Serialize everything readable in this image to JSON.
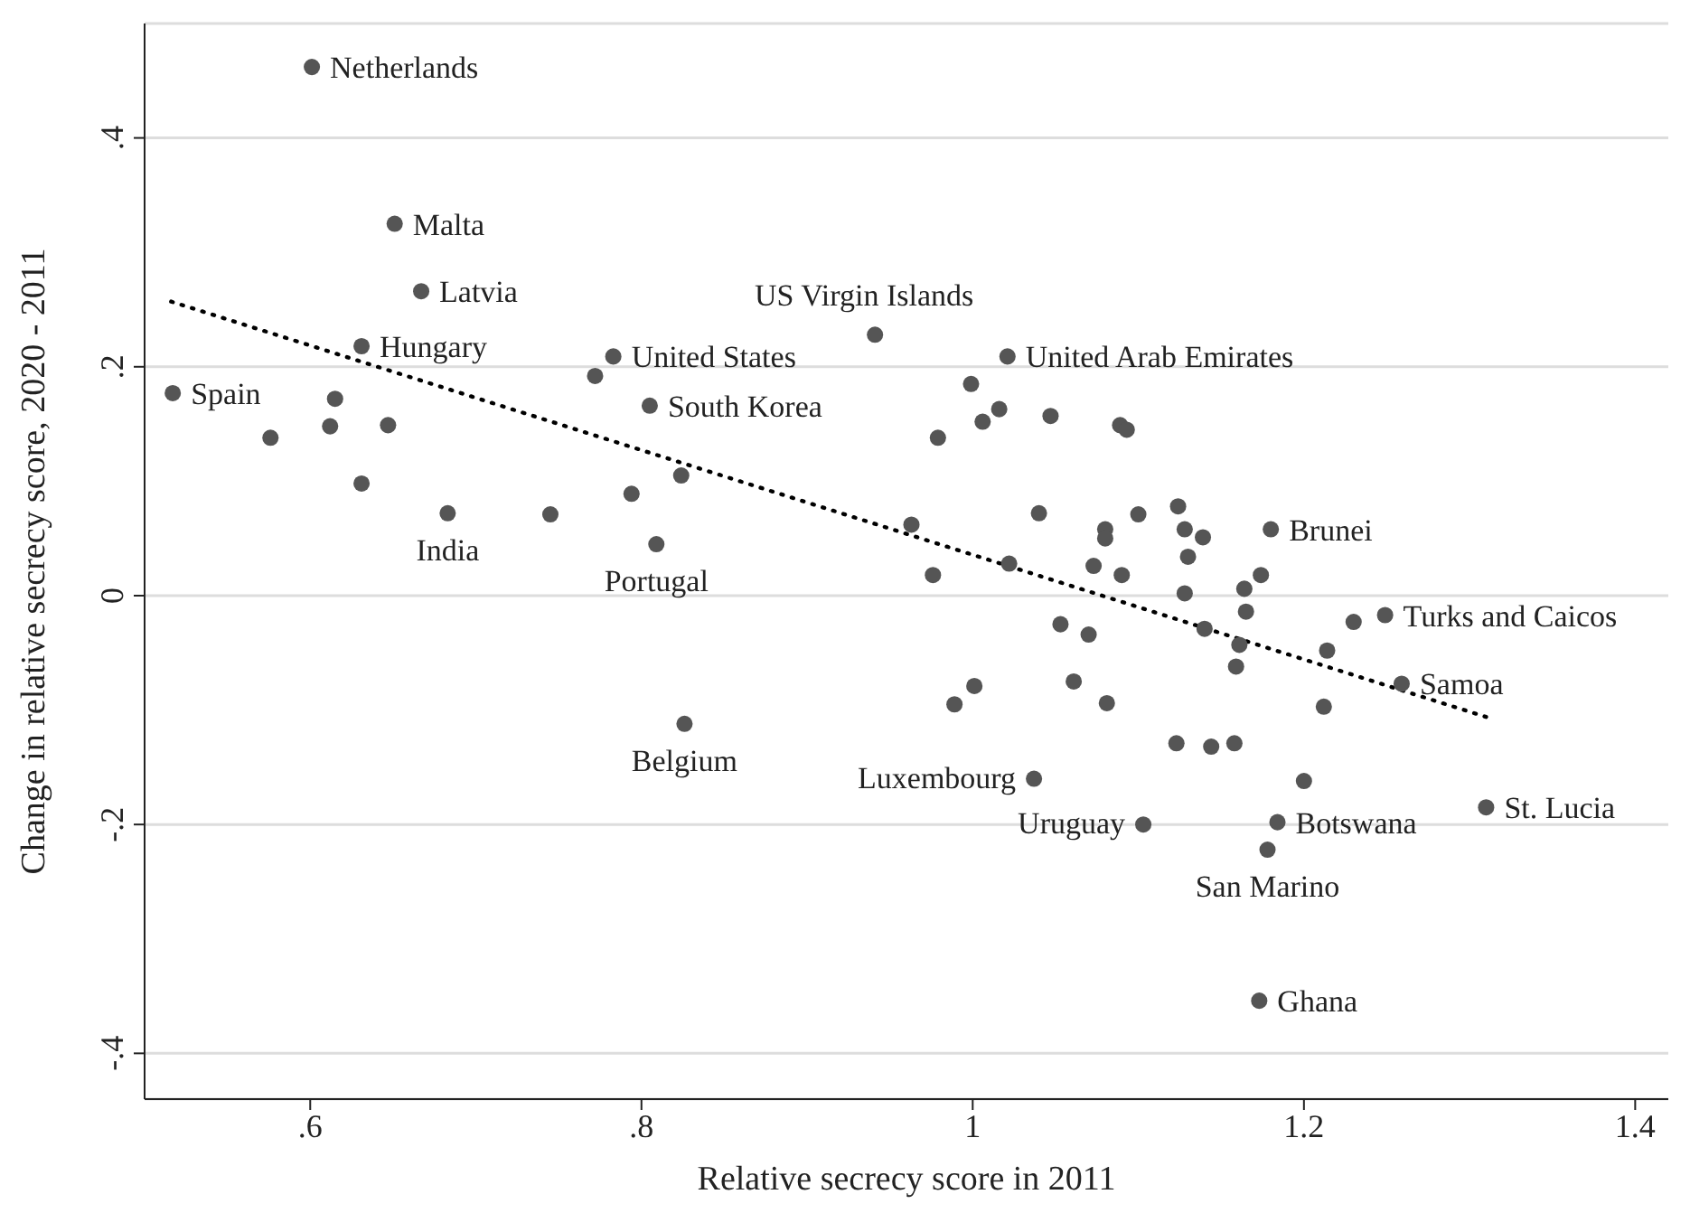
{
  "chart_data": {
    "type": "scatter",
    "xlabel": "Relative secrecy score in 2011",
    "ylabel": "Change in relative secrecy score, 2020 - 2011",
    "xlim": [
      0.5,
      1.42
    ],
    "ylim": [
      -0.44,
      0.5
    ],
    "xticks": [
      {
        "value": 0.6,
        "label": ".6"
      },
      {
        "value": 0.8,
        "label": ".8"
      },
      1,
      1.2,
      1.4
    ],
    "yticks": [
      {
        "value": -0.4,
        "label": "-.4"
      },
      {
        "value": -0.2,
        "label": "-.2"
      },
      0,
      {
        "value": 0.2,
        "label": ".2"
      },
      {
        "value": 0.4,
        "label": ".4"
      }
    ],
    "grid": "y",
    "legend": false,
    "marker": "circle",
    "series": [
      {
        "color": "#555555",
        "x": [
          0.601,
          0.651,
          0.667,
          0.631,
          0.517,
          0.783,
          0.805,
          0.941,
          1.021,
          0.683,
          0.809,
          0.826,
          1.18,
          1.249,
          1.259,
          1.31,
          1.037,
          1.103,
          1.184,
          1.178,
          1.173,
          0.615,
          0.576,
          0.612,
          0.647,
          0.631,
          0.772,
          0.745,
          0.794,
          0.824,
          0.999,
          1.016,
          1.006,
          0.979,
          1.047,
          1.089,
          1.093,
          0.963,
          1.04,
          1.1,
          1.08,
          1.08,
          1.124,
          1.128,
          1.139,
          1.13,
          1.022,
          0.976,
          1.073,
          1.09,
          1.174,
          1.164,
          1.128,
          1.165,
          1.053,
          1.07,
          1.14,
          1.161,
          1.159,
          1.23,
          1.214,
          1.212,
          1.001,
          0.989,
          1.061,
          1.081,
          1.123,
          1.144,
          1.158,
          1.2
        ],
        "values": [
          0.462,
          0.325,
          0.266,
          0.218,
          0.177,
          0.209,
          0.166,
          0.228,
          0.209,
          0.072,
          0.045,
          -0.112,
          0.058,
          -0.017,
          -0.077,
          -0.185,
          -0.16,
          -0.2,
          -0.198,
          -0.222,
          -0.354,
          0.172,
          0.138,
          0.148,
          0.149,
          0.098,
          0.192,
          0.071,
          0.089,
          0.105,
          0.185,
          0.163,
          0.152,
          0.138,
          0.157,
          0.149,
          0.145,
          0.062,
          0.072,
          0.071,
          0.058,
          0.05,
          0.078,
          0.058,
          0.051,
          0.034,
          0.028,
          0.018,
          0.026,
          0.018,
          0.018,
          0.006,
          0.002,
          -0.014,
          -0.025,
          -0.034,
          -0.029,
          -0.043,
          -0.062,
          -0.023,
          -0.048,
          -0.097,
          -0.079,
          -0.095,
          -0.075,
          -0.094,
          -0.129,
          -0.132,
          -0.129,
          -0.162
        ]
      },
      {
        "type": "line",
        "color": "#000000",
        "line_style": "dotted",
        "marker": "none",
        "x": [
          0.516,
          1.31
        ],
        "values": [
          0.257,
          -0.106
        ]
      }
    ],
    "annotations": [
      {
        "text": "Netherlands",
        "x": 0.601,
        "y": 0.462
      },
      {
        "text": "Malta",
        "x": 0.651,
        "y": 0.325
      },
      {
        "text": "Latvia",
        "x": 0.667,
        "y": 0.266
      },
      {
        "text": "Hungary",
        "x": 0.631,
        "y": 0.218
      },
      {
        "text": "Spain",
        "x": 0.517,
        "y": 0.177
      },
      {
        "text": "United States",
        "x": 0.783,
        "y": 0.209
      },
      {
        "text": "South Korea",
        "x": 0.805,
        "y": 0.166
      },
      {
        "text": "US Virgin Islands",
        "x": 0.941,
        "y": 0.228
      },
      {
        "text": "United Arab Emirates",
        "x": 1.021,
        "y": 0.209
      },
      {
        "text": "India",
        "x": 0.683,
        "y": 0.072
      },
      {
        "text": "Portugal",
        "x": 0.809,
        "y": 0.045
      },
      {
        "text": "Belgium",
        "x": 0.826,
        "y": -0.112
      },
      {
        "text": "Brunei",
        "x": 1.18,
        "y": 0.058
      },
      {
        "text": "Turks and Caicos",
        "x": 1.249,
        "y": -0.017
      },
      {
        "text": "Samoa",
        "x": 1.259,
        "y": -0.077
      },
      {
        "text": "St. Lucia",
        "x": 1.31,
        "y": -0.185
      },
      {
        "text": "Luxembourg",
        "x": 1.037,
        "y": -0.16
      },
      {
        "text": "Uruguay",
        "x": 1.103,
        "y": -0.2
      },
      {
        "text": "Botswana",
        "x": 1.184,
        "y": -0.198
      },
      {
        "text": "San Marino",
        "x": 1.178,
        "y": -0.222
      },
      {
        "text": "Ghana",
        "x": 1.173,
        "y": -0.354
      }
    ]
  }
}
